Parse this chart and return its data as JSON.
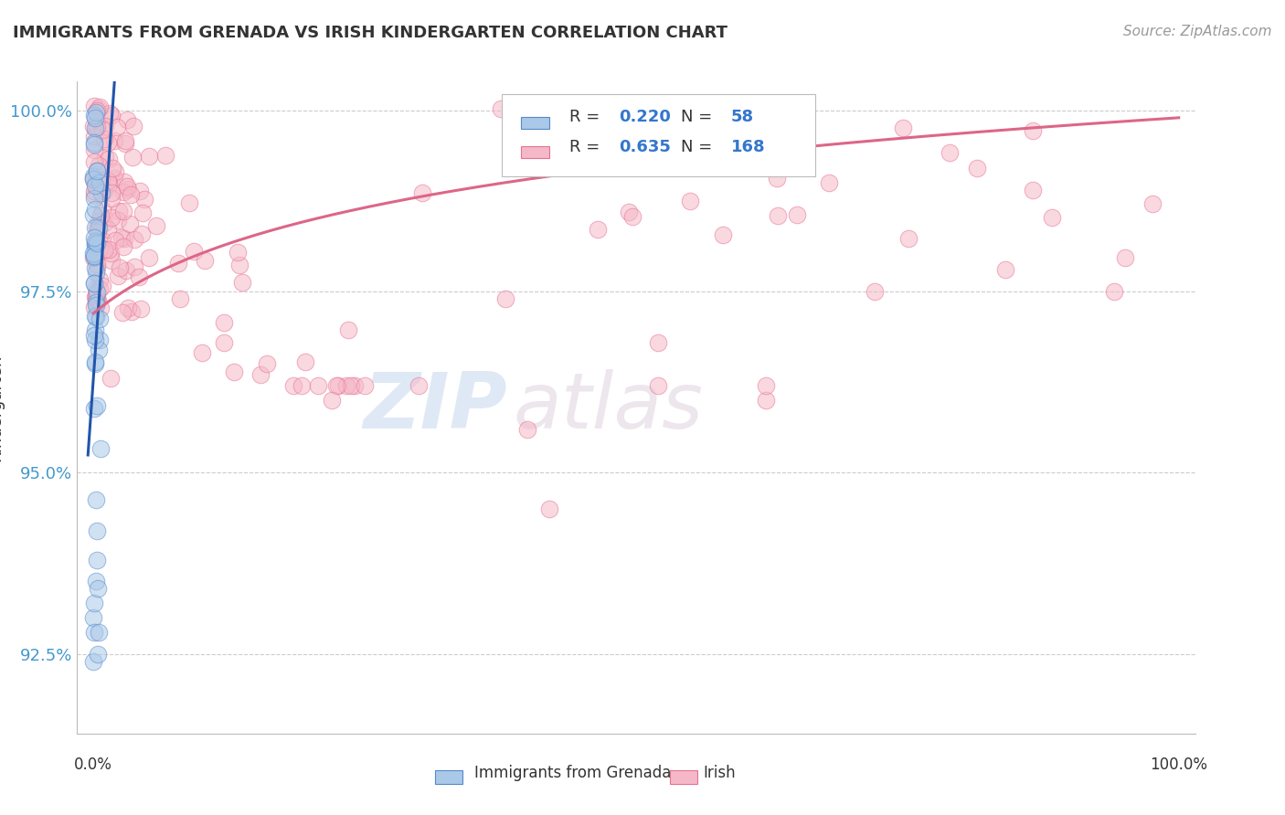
{
  "title": "IMMIGRANTS FROM GRENADA VS IRISH KINDERGARTEN CORRELATION CHART",
  "source": "Source: ZipAtlas.com",
  "ylabel": "Kindergarten",
  "xmin": 0.0,
  "xmax": 1.0,
  "ymin": 0.914,
  "ymax": 1.004,
  "yticks": [
    0.925,
    0.95,
    0.975,
    1.0
  ],
  "ytick_labels": [
    "92.5%",
    "95.0%",
    "97.5%",
    "100.0%"
  ],
  "blue_R": 0.22,
  "blue_N": 58,
  "pink_R": 0.635,
  "pink_N": 168,
  "blue_fill_color": "#aac9e8",
  "blue_edge_color": "#5588cc",
  "pink_fill_color": "#f5b8c8",
  "pink_edge_color": "#e87090",
  "blue_line_color": "#2255aa",
  "pink_line_color": "#dd6688",
  "watermark_zip": "ZIP",
  "watermark_atlas": "atlas",
  "legend_label_blue": "Immigrants from Grenada",
  "legend_label_pink": "Irish",
  "r_color": "#3377cc",
  "label_color": "#333333",
  "ytick_color": "#4499cc",
  "grid_color": "#cccccc",
  "source_color": "#999999",
  "title_color": "#333333"
}
